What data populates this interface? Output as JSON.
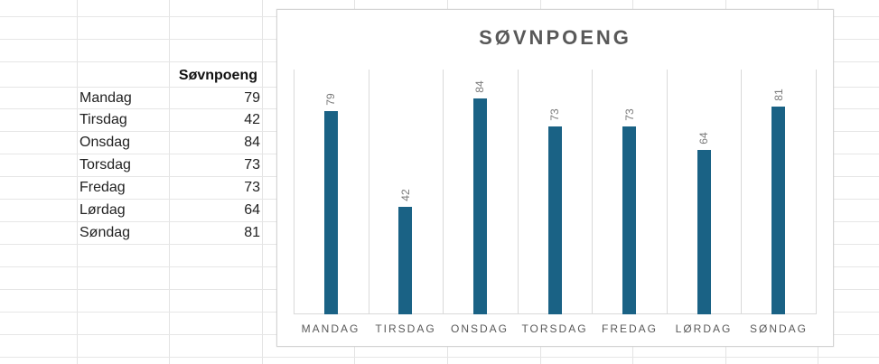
{
  "sheet": {
    "header": "Søvnpoeng",
    "rows": [
      {
        "day": "Mandag",
        "value": "79"
      },
      {
        "day": "Tirsdag",
        "value": "42"
      },
      {
        "day": "Onsdag",
        "value": "84"
      },
      {
        "day": "Torsdag",
        "value": "73"
      },
      {
        "day": "Fredag",
        "value": "73"
      },
      {
        "day": "Lørdag",
        "value": "64"
      },
      {
        "day": "Søndag",
        "value": "81"
      }
    ]
  },
  "chart": {
    "title": "SØVNPOENG",
    "bar_color": "#1a6285",
    "categories": [
      "MANDAG",
      "TIRSDAG",
      "ONSDAG",
      "TORSDAG",
      "FREDAG",
      "LØRDAG",
      "SØNDAG"
    ],
    "values": [
      79,
      42,
      84,
      73,
      73,
      64,
      81
    ]
  },
  "chart_data": {
    "type": "bar",
    "title": "SØVNPOENG",
    "categories": [
      "MANDAG",
      "TIRSDAG",
      "ONSDAG",
      "TORSDAG",
      "FREDAG",
      "LØRDAG",
      "SØNDAG"
    ],
    "values": [
      79,
      42,
      84,
      73,
      73,
      64,
      81
    ],
    "xlabel": "",
    "ylabel": "",
    "ylim": [
      0,
      90
    ],
    "grid": "vertical category separators",
    "legend": "none",
    "data_labels": true
  }
}
